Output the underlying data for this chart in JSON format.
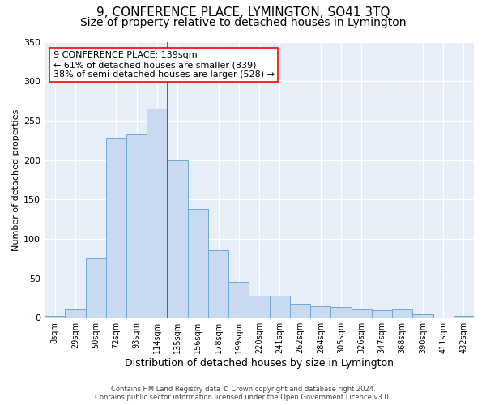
{
  "title": "9, CONFERENCE PLACE, LYMINGTON, SO41 3TQ",
  "subtitle": "Size of property relative to detached houses in Lymington",
  "xlabel": "Distribution of detached houses by size in Lymington",
  "ylabel": "Number of detached properties",
  "bin_labels": [
    "8sqm",
    "29sqm",
    "50sqm",
    "72sqm",
    "93sqm",
    "114sqm",
    "135sqm",
    "156sqm",
    "178sqm",
    "199sqm",
    "220sqm",
    "241sqm",
    "262sqm",
    "284sqm",
    "305sqm",
    "326sqm",
    "347sqm",
    "368sqm",
    "390sqm",
    "411sqm",
    "432sqm"
  ],
  "bar_values": [
    2,
    10,
    75,
    228,
    232,
    265,
    200,
    138,
    85,
    45,
    28,
    28,
    18,
    15,
    14,
    11,
    9,
    10,
    4,
    0,
    2
  ],
  "bar_color": "#c8d9f0",
  "bar_edge_color": "#6aaad4",
  "vline_x_index": 5.5,
  "vline_color": "red",
  "annotation_text": "9 CONFERENCE PLACE: 139sqm\n← 61% of detached houses are smaller (839)\n38% of semi-detached houses are larger (528) →",
  "annotation_box_color": "white",
  "annotation_box_edge": "red",
  "ylim": [
    0,
    350
  ],
  "yticks": [
    0,
    50,
    100,
    150,
    200,
    250,
    300,
    350
  ],
  "footer_line1": "Contains HM Land Registry data © Crown copyright and database right 2024.",
  "footer_line2": "Contains public sector information licensed under the Open Government Licence v3.0.",
  "background_color": "#e8eef8",
  "title_fontsize": 11,
  "subtitle_fontsize": 10,
  "ylabel_fontsize": 8,
  "xlabel_fontsize": 9,
  "annotation_fontsize": 8
}
